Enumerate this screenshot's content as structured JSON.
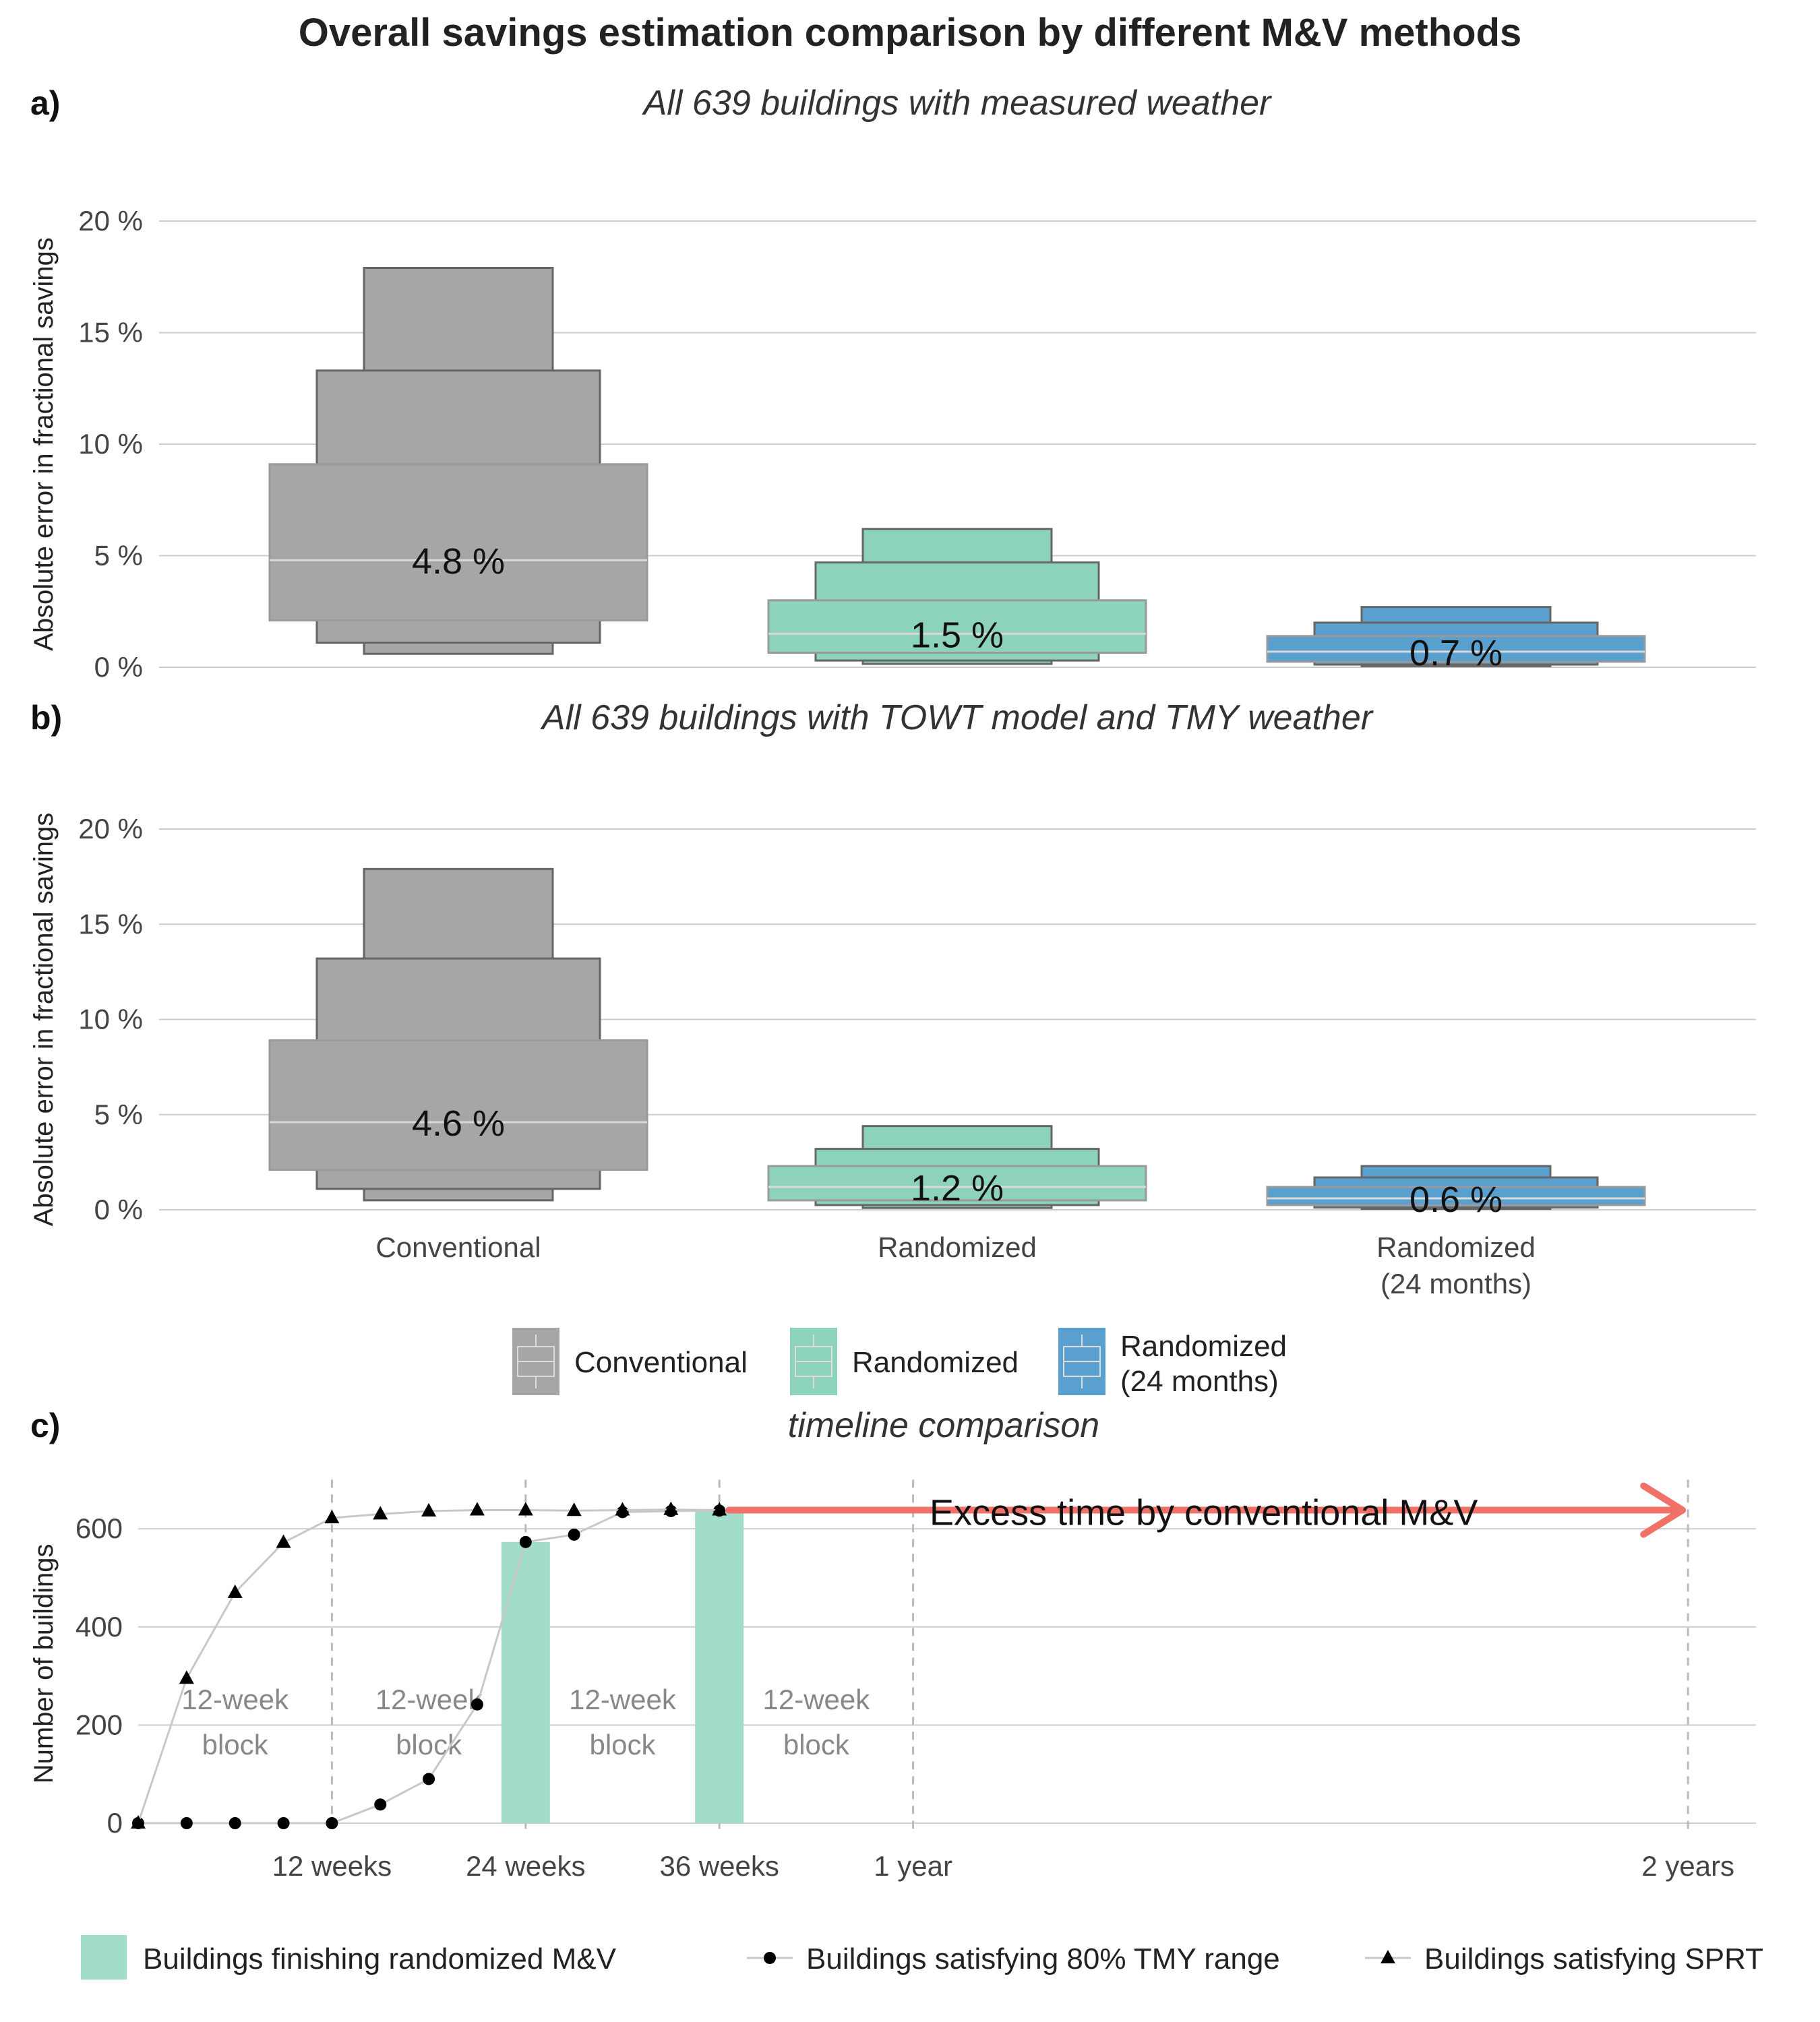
{
  "title": "Overall savings estimation comparison by different M&V methods",
  "colors": {
    "Conventional": "#a6a6a6",
    "Randomized": "#8dd3bb",
    "Randomized (24 months)": "#5aa0cf",
    "bar": "#a2dccb",
    "arrow": "#f07168"
  },
  "chart_data": [
    {
      "type": "box",
      "panel_label": "a)",
      "title": "All 639 buildings with measured weather",
      "ylabel": "Absolute error in fractional savings",
      "ylim": [
        0,
        20
      ],
      "yticks": [
        "0 %",
        "5 %",
        "10 %",
        "15 %",
        "20 %"
      ],
      "categories": [
        "Conventional",
        "Randomized",
        "Randomized\n(24 months)"
      ],
      "series": [
        {
          "name": "Conventional",
          "median_label": "4.8 %",
          "median": 4.8,
          "levels": [
            {
              "lo": 2.1,
              "hi": 9.1
            },
            {
              "lo": 1.1,
              "hi": 13.3
            },
            {
              "lo": 0.6,
              "hi": 17.9
            }
          ]
        },
        {
          "name": "Randomized",
          "median_label": "1.5 %",
          "median": 1.5,
          "levels": [
            {
              "lo": 0.65,
              "hi": 3.0
            },
            {
              "lo": 0.3,
              "hi": 4.7
            },
            {
              "lo": 0.15,
              "hi": 6.2
            }
          ]
        },
        {
          "name": "Randomized (24 months)",
          "median_label": "0.7 %",
          "median": 0.7,
          "levels": [
            {
              "lo": 0.25,
              "hi": 1.4
            },
            {
              "lo": 0.12,
              "hi": 2.0
            },
            {
              "lo": 0.05,
              "hi": 2.7
            }
          ]
        }
      ]
    },
    {
      "type": "box",
      "panel_label": "b)",
      "title": "All 639 buildings with TOWT model and TMY weather",
      "ylabel": "Absolute error in fractional savings",
      "ylim": [
        0,
        20
      ],
      "yticks": [
        "0 %",
        "5 %",
        "10 %",
        "15 %",
        "20 %"
      ],
      "categories": [
        "Conventional",
        "Randomized",
        "Randomized\n(24 months)"
      ],
      "series": [
        {
          "name": "Conventional",
          "median_label": "4.6 %",
          "median": 4.6,
          "levels": [
            {
              "lo": 2.1,
              "hi": 8.9
            },
            {
              "lo": 1.1,
              "hi": 13.2
            },
            {
              "lo": 0.5,
              "hi": 17.9
            }
          ]
        },
        {
          "name": "Randomized",
          "median_label": "1.2 %",
          "median": 1.2,
          "levels": [
            {
              "lo": 0.5,
              "hi": 2.3
            },
            {
              "lo": 0.25,
              "hi": 3.2
            },
            {
              "lo": 0.1,
              "hi": 4.4
            }
          ]
        },
        {
          "name": "Randomized (24 months)",
          "median_label": "0.6 %",
          "median": 0.6,
          "levels": [
            {
              "lo": 0.25,
              "hi": 1.2
            },
            {
              "lo": 0.12,
              "hi": 1.7
            },
            {
              "lo": 0.05,
              "hi": 2.3
            }
          ]
        }
      ]
    },
    {
      "type": "line",
      "panel_label": "c)",
      "title": "timeline comparison",
      "ylabel": "Number of buildings",
      "ylim": [
        0,
        700
      ],
      "yticks": [
        0,
        200,
        400,
        600
      ],
      "x_units": "weeks",
      "xlim": [
        0,
        130
      ],
      "xticks": [
        {
          "value": 12,
          "label": "12 weeks"
        },
        {
          "value": 24,
          "label": "24 weeks"
        },
        {
          "value": 36,
          "label": "36 weeks"
        },
        {
          "value": 48,
          "label": "1 year"
        },
        {
          "value": 96,
          "label": "2 years"
        }
      ],
      "vlines": [
        12,
        24,
        36,
        48,
        96
      ],
      "bars": {
        "name": "Buildings finishing randomized M&V",
        "x": [
          24,
          36
        ],
        "values": [
          573,
          639
        ]
      },
      "series": [
        {
          "name": "Buildings satisfying 80% TMY range",
          "marker": "circle",
          "x": [
            0,
            3,
            6,
            9,
            12,
            15,
            18,
            21,
            24,
            27,
            30,
            33,
            36
          ],
          "y": [
            0,
            0,
            0,
            0,
            0,
            38,
            90,
            242,
            573,
            588,
            634,
            636,
            637
          ]
        },
        {
          "name": "Buildings satisfying SPRT",
          "marker": "triangle",
          "x": [
            0,
            3,
            6,
            9,
            12,
            15,
            18,
            21,
            24,
            27,
            30,
            33,
            36
          ],
          "y": [
            0,
            295,
            470,
            572,
            622,
            630,
            636,
            638,
            638,
            637,
            638,
            639,
            638
          ]
        }
      ],
      "block_labels": [
        {
          "x_start": 0,
          "x_end": 12,
          "text_line1": "12-week",
          "text_line2": "block"
        },
        {
          "x_start": 12,
          "x_end": 24,
          "text_line1": "12-week",
          "text_line2": "block"
        },
        {
          "x_start": 24,
          "x_end": 36,
          "text_line1": "12-week",
          "text_line2": "block"
        },
        {
          "x_start": 36,
          "x_end": 48,
          "text_line1": "12-week",
          "text_line2": "block"
        }
      ],
      "arrow": {
        "x_from": 36,
        "x_to": 96,
        "y": 638,
        "label": "Excess time by conventional M&V"
      }
    }
  ],
  "legend_top": [
    {
      "name": "Conventional",
      "line1": "Conventional",
      "line2": ""
    },
    {
      "name": "Randomized",
      "line1": "Randomized",
      "line2": ""
    },
    {
      "name": "Randomized (24 months)",
      "line1": "Randomized",
      "line2": "(24 months)"
    }
  ],
  "legend_bottom": [
    {
      "label": "Buildings finishing randomized M&V",
      "kind": "bar"
    },
    {
      "label": "Buildings satisfying 80% TMY range",
      "kind": "circle"
    },
    {
      "label": "Buildings satisfying SPRT",
      "kind": "triangle"
    }
  ]
}
